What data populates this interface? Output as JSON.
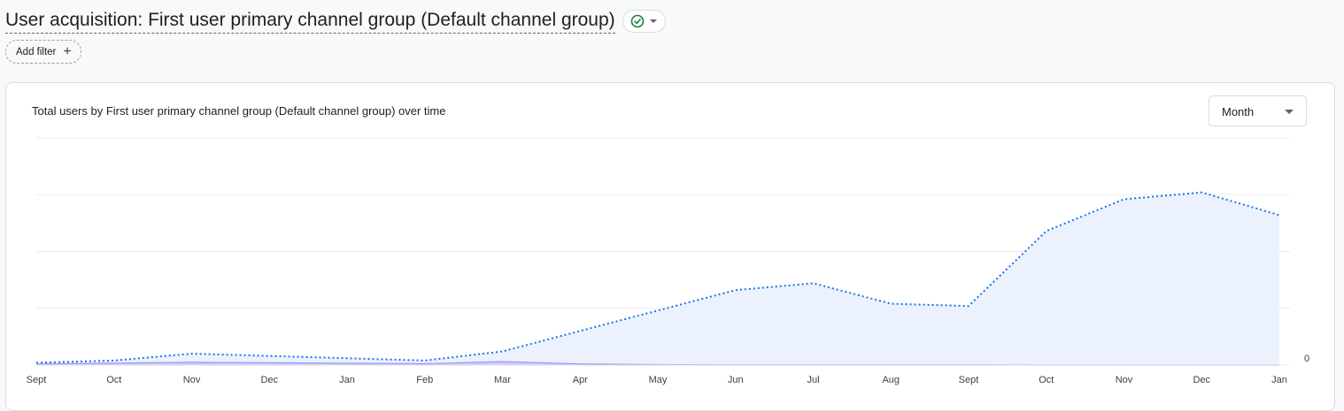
{
  "header": {
    "title": "User acquisition: First user primary channel group (Default channel group)",
    "add_filter_label": "Add filter"
  },
  "card": {
    "chart_title": "Total users by First user primary channel group (Default channel group) over time",
    "granularity": "Month"
  },
  "colors": {
    "primary_line": "#1a73e8",
    "primary_fill": "#e8f0fe",
    "secondary_line": "#7b61ff",
    "grid": "#e8eaed",
    "status_check": "#188038"
  },
  "icons": [
    "check-circle-icon",
    "chevron-down-icon",
    "plus-icon"
  ],
  "chart_data": {
    "type": "area",
    "x": [
      "Sept",
      "Oct",
      "Nov",
      "Dec",
      "Jan",
      "Feb",
      "Mar",
      "Apr",
      "May",
      "Jun",
      "Jul",
      "Aug",
      "Sept",
      "Oct",
      "Nov",
      "Dec",
      "Jan"
    ],
    "series": [
      {
        "values": [
          1,
          2,
          5,
          4,
          3,
          2,
          6,
          15,
          24,
          33,
          36,
          27,
          26,
          59,
          73,
          76,
          66
        ],
        "style": "dotted-area"
      },
      {
        "values": [
          0.5,
          0.8,
          1.2,
          1,
          0.8,
          0.6,
          1.5,
          0.5,
          0.2,
          0.1,
          0.1,
          0.1,
          0.1,
          0,
          0,
          0,
          0
        ],
        "style": "faint-area"
      }
    ],
    "y_ticks": [
      "0"
    ],
    "ylim": [
      0,
      100
    ],
    "grid": true
  }
}
